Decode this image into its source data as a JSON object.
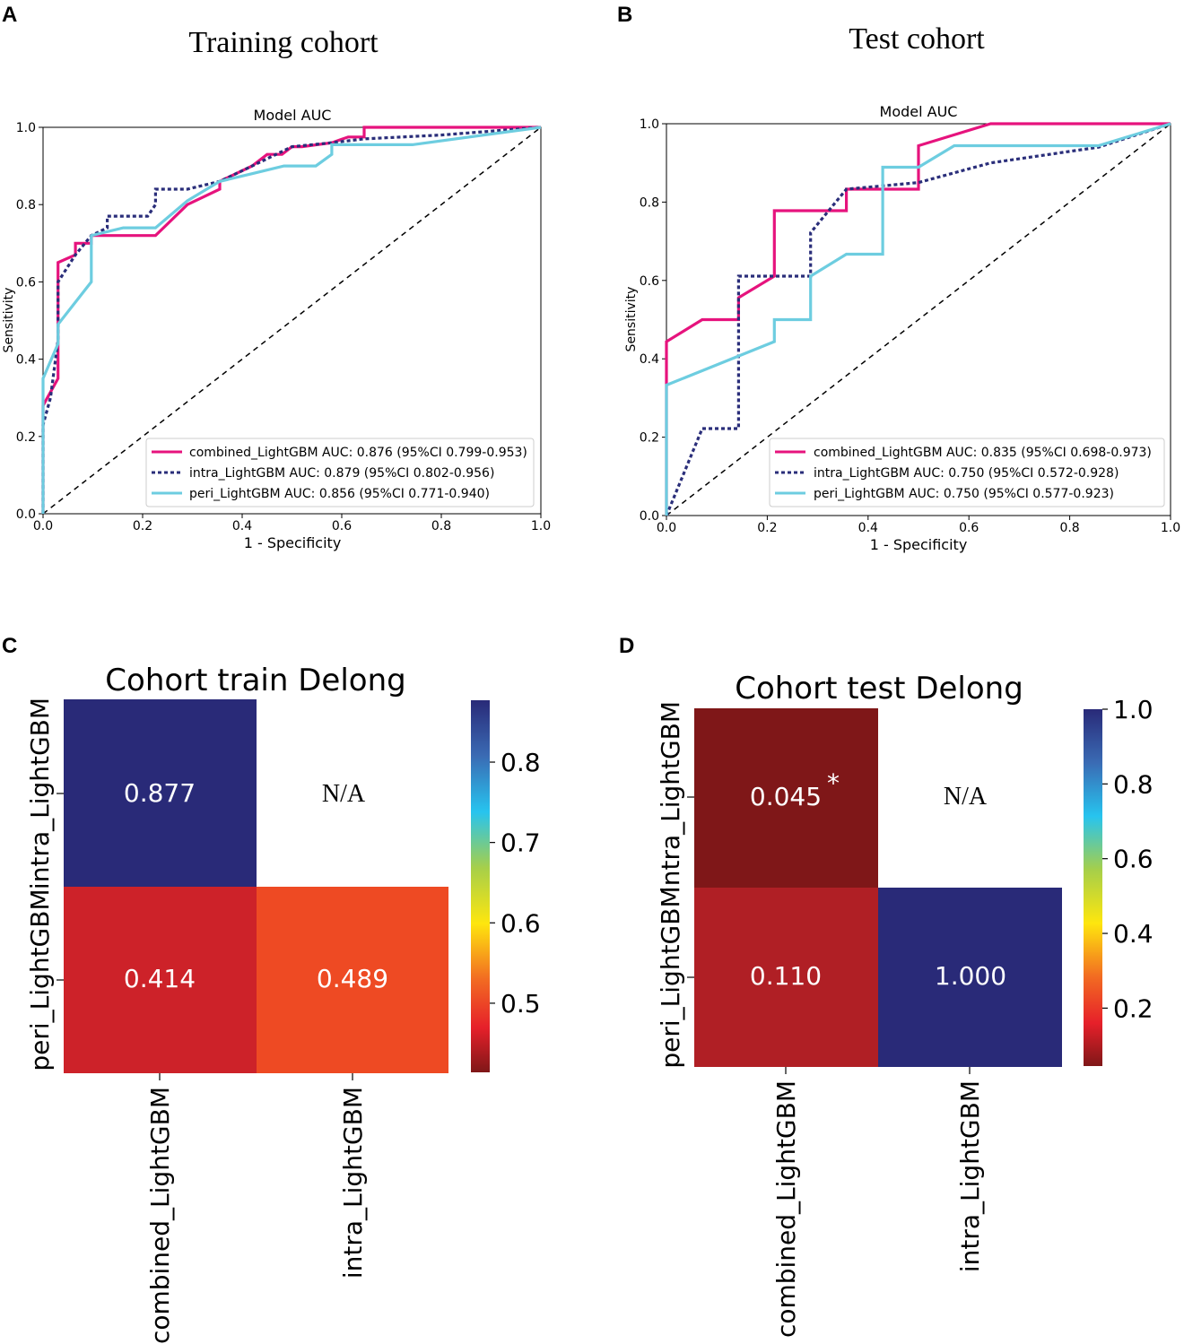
{
  "panels": {
    "A": {
      "letter": "A",
      "cohort_title": "Training cohort"
    },
    "B": {
      "letter": "B",
      "cohort_title": "Test cohort"
    },
    "C": {
      "letter": "C"
    },
    "D": {
      "letter": "D"
    }
  },
  "colors": {
    "combined": "#e6137d",
    "intra": "#2a2e7a",
    "peri": "#6dcde0",
    "diagonal": "#000000"
  },
  "chart_data": [
    {
      "id": "A",
      "type": "line",
      "title": "Model AUC",
      "xlabel": "1 - Specificity",
      "ylabel": "Sensitivity",
      "xlim": [
        0,
        1
      ],
      "ylim": [
        0,
        1
      ],
      "ticks": [
        "0.0",
        "0.2",
        "0.4",
        "0.6",
        "0.8",
        "1.0"
      ],
      "series": [
        {
          "key": "combined",
          "name": "combined_LightGBM AUC: 0.876 (95%CI 0.799-0.953)",
          "style": "solid",
          "x": [
            0,
            0,
            0.03,
            0.03,
            0.065,
            0.065,
            0.097,
            0.097,
            0.226,
            0.29,
            0.355,
            0.355,
            0.42,
            0.45,
            0.48,
            0.5,
            0.52,
            0.58,
            0.613,
            0.645,
            0.645,
            1
          ],
          "y": [
            0,
            0.28,
            0.35,
            0.65,
            0.67,
            0.7,
            0.7,
            0.72,
            0.72,
            0.8,
            0.84,
            0.86,
            0.9,
            0.93,
            0.93,
            0.95,
            0.95,
            0.96,
            0.975,
            0.975,
            1,
            1
          ]
        },
        {
          "key": "intra",
          "name": "intra_LightGBM AUC: 0.879 (95%CI 0.802-0.956)",
          "style": "dotted",
          "x": [
            0,
            0,
            0.015,
            0.03,
            0.03,
            0.065,
            0.097,
            0.129,
            0.129,
            0.21,
            0.226,
            0.226,
            0.29,
            0.355,
            0.42,
            0.5,
            0.58,
            0.645,
            0.8,
            1
          ],
          "y": [
            0,
            0.23,
            0.3,
            0.45,
            0.6,
            0.67,
            0.72,
            0.74,
            0.77,
            0.77,
            0.8,
            0.84,
            0.84,
            0.86,
            0.9,
            0.95,
            0.96,
            0.97,
            0.98,
            1
          ]
        },
        {
          "key": "peri",
          "name": "peri_LightGBM AUC: 0.856 (95%CI 0.771-0.940)",
          "style": "solid",
          "x": [
            0,
            0,
            0.03,
            0.03,
            0.097,
            0.097,
            0.161,
            0.226,
            0.29,
            0.355,
            0.42,
            0.484,
            0.548,
            0.58,
            0.58,
            0.742,
            1
          ],
          "y": [
            0,
            0.35,
            0.44,
            0.49,
            0.6,
            0.72,
            0.74,
            0.74,
            0.81,
            0.86,
            0.88,
            0.9,
            0.9,
            0.93,
            0.955,
            0.955,
            1
          ]
        }
      ]
    },
    {
      "id": "B",
      "type": "line",
      "title": "Model AUC",
      "xlabel": "1 - Specificity",
      "ylabel": "Sensitivity",
      "xlim": [
        0,
        1
      ],
      "ylim": [
        0,
        1
      ],
      "ticks": [
        "0.0",
        "0.2",
        "0.4",
        "0.6",
        "0.8",
        "1.0"
      ],
      "series": [
        {
          "key": "combined",
          "name": "combined_LightGBM AUC: 0.835 (95%CI 0.698-0.973)",
          "style": "solid",
          "x": [
            0,
            0,
            0.071,
            0.143,
            0.143,
            0.214,
            0.214,
            0.357,
            0.357,
            0.5,
            0.5,
            0.643,
            1
          ],
          "y": [
            0,
            0.444,
            0.5,
            0.5,
            0.556,
            0.611,
            0.778,
            0.778,
            0.833,
            0.833,
            0.944,
            1,
            1
          ]
        },
        {
          "key": "intra",
          "name": "intra_LightGBM AUC: 0.750 (95%CI 0.572-0.928)",
          "style": "dotted",
          "x": [
            0,
            0.071,
            0.143,
            0.143,
            0.286,
            0.286,
            0.357,
            0.5,
            0.643,
            0.857,
            1
          ],
          "y": [
            0,
            0.222,
            0.222,
            0.611,
            0.611,
            0.722,
            0.833,
            0.85,
            0.9,
            0.94,
            1
          ]
        },
        {
          "key": "peri",
          "name": "peri_LightGBM AUC: 0.750 (95%CI 0.577-0.923)",
          "style": "solid",
          "x": [
            0,
            0,
            0.214,
            0.214,
            0.286,
            0.286,
            0.357,
            0.429,
            0.429,
            0.5,
            0.571,
            0.857,
            1
          ],
          "y": [
            0,
            0.333,
            0.444,
            0.5,
            0.5,
            0.611,
            0.667,
            0.667,
            0.889,
            0.889,
            0.944,
            0.944,
            1
          ]
        }
      ]
    },
    {
      "id": "C",
      "type": "heatmap",
      "title": "Cohort train Delong",
      "row_labels": [
        "intra_LightGBM",
        "peri_LightGBM"
      ],
      "col_labels": [
        "combined_LightGBM",
        "intra_LightGBM"
      ],
      "cells": [
        [
          {
            "text": "0.877",
            "value": 0.877,
            "color": "#292a78"
          },
          {
            "text": "N/A",
            "value": null,
            "color": null
          }
        ],
        [
          {
            "text": "0.414",
            "value": 0.414,
            "color": "#cd2229"
          },
          {
            "text": "0.489",
            "value": 0.489,
            "color": "#ee4a23"
          }
        ]
      ],
      "colorbar": {
        "min": 0.414,
        "max": 0.877,
        "ticks": [
          "0.5",
          "0.6",
          "0.7",
          "0.8"
        ],
        "tick_values": [
          0.5,
          0.6,
          0.7,
          0.8
        ]
      }
    },
    {
      "id": "D",
      "type": "heatmap",
      "title": "Cohort test Delong",
      "row_labels": [
        "intra_LightGBM",
        "peri_LightGBM"
      ],
      "col_labels": [
        "combined_LightGBM",
        "intra_LightGBM"
      ],
      "cells": [
        [
          {
            "text": "0.045",
            "value": 0.045,
            "color": "#7f1718",
            "mark": "*"
          },
          {
            "text": "N/A",
            "value": null,
            "color": null
          }
        ],
        [
          {
            "text": "0.110",
            "value": 0.11,
            "color": "#b01f25"
          },
          {
            "text": "1.000",
            "value": 1.0,
            "color": "#292a78"
          }
        ]
      ],
      "colorbar": {
        "min": 0.045,
        "max": 1.0,
        "ticks": [
          "0.2",
          "0.4",
          "0.6",
          "0.8",
          "1.0"
        ],
        "tick_values": [
          0.2,
          0.4,
          0.6,
          0.8,
          1.0
        ]
      }
    }
  ]
}
